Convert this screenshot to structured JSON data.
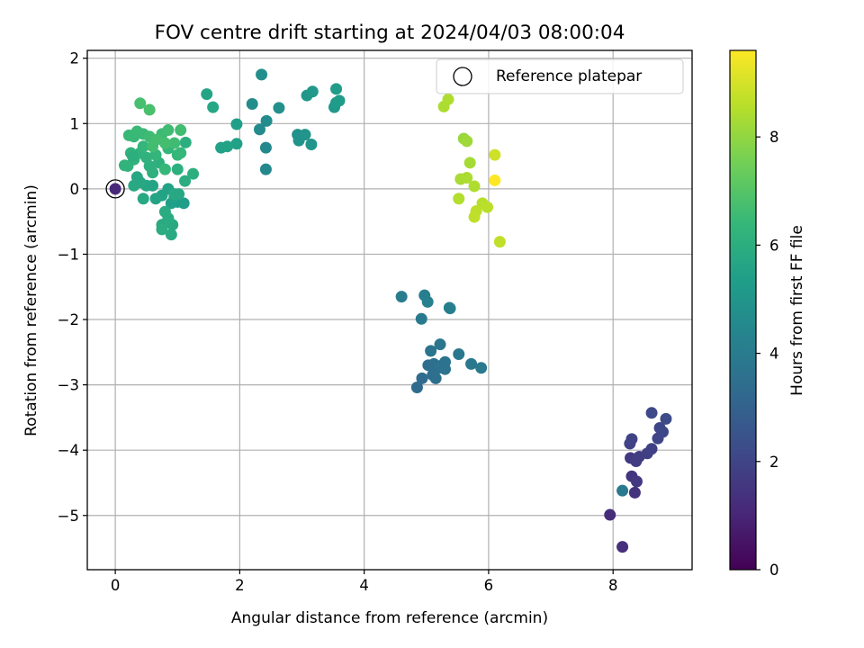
{
  "chart_data": {
    "type": "scatter",
    "title": "FOV centre drift starting at 2024/04/03 08:00:04",
    "xlabel": "Angular distance from reference (arcmin)",
    "ylabel": "Rotation from reference (arcmin)",
    "xlim": [
      -0.45,
      9.27
    ],
    "ylim": [
      -5.83,
      2.12
    ],
    "xticks": [
      0,
      2,
      4,
      6,
      8
    ],
    "yticks": [
      -5,
      -4,
      -3,
      -2,
      -1,
      0,
      1,
      2
    ],
    "grid": true,
    "legend": {
      "position": "top-right",
      "entries": [
        "Reference platepar"
      ]
    },
    "reference_point": {
      "x": 0,
      "y": 0
    },
    "colorbar": {
      "label": "Hours from first FF file",
      "min": 0,
      "max": 9.6,
      "ticks": [
        0,
        2,
        4,
        6,
        8
      ],
      "colormap": "viridis",
      "colormap_stops": [
        "#440154",
        "#482878",
        "#3e4989",
        "#31688e",
        "#26828e",
        "#1f9e89",
        "#35b779",
        "#6ece58",
        "#b5de2b",
        "#fde725"
      ]
    },
    "series": [
      {
        "points": [
          {
            "x": 0.0,
            "y": 0.0,
            "c": 1.1
          },
          {
            "x": 7.95,
            "y": -4.99,
            "c": 1.2
          },
          {
            "x": 8.15,
            "y": -5.48,
            "c": 1.3
          },
          {
            "x": 8.35,
            "y": -4.65,
            "c": 1.4
          },
          {
            "x": 8.3,
            "y": -4.4,
            "c": 1.5
          },
          {
            "x": 8.38,
            "y": -4.48,
            "c": 1.6
          },
          {
            "x": 8.28,
            "y": -4.12,
            "c": 1.6
          },
          {
            "x": 8.37,
            "y": -4.17,
            "c": 1.7
          },
          {
            "x": 8.42,
            "y": -4.1,
            "c": 1.75
          },
          {
            "x": 8.55,
            "y": -4.05,
            "c": 1.8
          },
          {
            "x": 8.62,
            "y": -3.98,
            "c": 1.85
          },
          {
            "x": 8.27,
            "y": -3.9,
            "c": 1.9
          },
          {
            "x": 8.3,
            "y": -3.83,
            "c": 1.95
          },
          {
            "x": 8.72,
            "y": -3.82,
            "c": 2.0
          },
          {
            "x": 8.75,
            "y": -3.66,
            "c": 2.05
          },
          {
            "x": 8.8,
            "y": -3.72,
            "c": 2.1
          },
          {
            "x": 8.62,
            "y": -3.43,
            "c": 2.15
          },
          {
            "x": 8.85,
            "y": -3.52,
            "c": 2.2
          },
          {
            "x": 8.15,
            "y": -4.62,
            "c": 3.9
          },
          {
            "x": 4.85,
            "y": -3.04,
            "c": 3.3
          },
          {
            "x": 4.93,
            "y": -2.9,
            "c": 3.35
          },
          {
            "x": 5.03,
            "y": -2.7,
            "c": 3.4
          },
          {
            "x": 5.1,
            "y": -2.85,
            "c": 3.45
          },
          {
            "x": 5.12,
            "y": -2.68,
            "c": 3.5
          },
          {
            "x": 5.15,
            "y": -2.9,
            "c": 3.5
          },
          {
            "x": 5.2,
            "y": -2.74,
            "c": 3.55
          },
          {
            "x": 5.25,
            "y": -2.7,
            "c": 3.6
          },
          {
            "x": 5.3,
            "y": -2.76,
            "c": 3.6
          },
          {
            "x": 5.3,
            "y": -2.65,
            "c": 3.65
          },
          {
            "x": 5.07,
            "y": -2.48,
            "c": 3.7
          },
          {
            "x": 5.22,
            "y": -2.38,
            "c": 3.75
          },
          {
            "x": 5.52,
            "y": -2.53,
            "c": 3.8
          },
          {
            "x": 5.72,
            "y": -2.68,
            "c": 3.85
          },
          {
            "x": 5.88,
            "y": -2.74,
            "c": 3.9
          },
          {
            "x": 4.92,
            "y": -1.99,
            "c": 3.95
          },
          {
            "x": 4.6,
            "y": -1.65,
            "c": 4.0
          },
          {
            "x": 4.97,
            "y": -1.63,
            "c": 4.05
          },
          {
            "x": 5.37,
            "y": -1.82,
            "c": 4.1
          },
          {
            "x": 5.38,
            "y": -1.83,
            "c": 4.15
          },
          {
            "x": 5.02,
            "y": -1.73,
            "c": 4.2
          },
          {
            "x": 2.42,
            "y": 0.3,
            "c": 4.5
          },
          {
            "x": 2.42,
            "y": 0.63,
            "c": 4.55
          },
          {
            "x": 2.32,
            "y": 0.91,
            "c": 4.6
          },
          {
            "x": 2.43,
            "y": 1.04,
            "c": 4.65
          },
          {
            "x": 2.2,
            "y": 1.3,
            "c": 4.7
          },
          {
            "x": 2.35,
            "y": 1.75,
            "c": 4.75
          },
          {
            "x": 2.63,
            "y": 1.24,
            "c": 4.8
          },
          {
            "x": 2.93,
            "y": 0.83,
            "c": 4.85
          },
          {
            "x": 2.95,
            "y": 0.74,
            "c": 4.9
          },
          {
            "x": 3.05,
            "y": 0.83,
            "c": 4.95
          },
          {
            "x": 3.15,
            "y": 0.68,
            "c": 5.0
          },
          {
            "x": 3.08,
            "y": 1.43,
            "c": 5.05
          },
          {
            "x": 3.17,
            "y": 1.49,
            "c": 5.1
          },
          {
            "x": 3.52,
            "y": 1.25,
            "c": 5.15
          },
          {
            "x": 3.55,
            "y": 1.32,
            "c": 5.2
          },
          {
            "x": 3.55,
            "y": 1.53,
            "c": 5.25
          },
          {
            "x": 3.6,
            "y": 1.35,
            "c": 5.3
          },
          {
            "x": 1.95,
            "y": 0.99,
            "c": 5.4
          },
          {
            "x": 1.95,
            "y": 0.69,
            "c": 5.45
          },
          {
            "x": 1.7,
            "y": 0.63,
            "c": 5.5
          },
          {
            "x": 1.8,
            "y": 0.65,
            "c": 5.55
          },
          {
            "x": 1.0,
            "y": -0.2,
            "c": 5.3
          },
          {
            "x": 1.1,
            "y": -0.22,
            "c": 5.35
          },
          {
            "x": 0.9,
            "y": -0.22,
            "c": 5.4
          },
          {
            "x": 0.95,
            "y": -0.13,
            "c": 5.45
          },
          {
            "x": 0.85,
            "y": 0.0,
            "c": 5.5
          },
          {
            "x": 0.75,
            "y": -0.1,
            "c": 5.55
          },
          {
            "x": 0.65,
            "y": -0.15,
            "c": 5.6
          },
          {
            "x": 0.6,
            "y": 0.05,
            "c": 5.6
          },
          {
            "x": 0.5,
            "y": 0.05,
            "c": 5.65
          },
          {
            "x": 0.4,
            "y": 0.1,
            "c": 5.7
          },
          {
            "x": 0.35,
            "y": 0.18,
            "c": 5.7
          },
          {
            "x": 0.45,
            "y": -0.15,
            "c": 5.75
          },
          {
            "x": 0.3,
            "y": 0.05,
            "c": 5.75
          },
          {
            "x": 0.95,
            "y": -0.08,
            "c": 5.8
          },
          {
            "x": 0.92,
            "y": -0.55,
            "c": 5.8
          },
          {
            "x": 0.75,
            "y": -0.55,
            "c": 5.85
          },
          {
            "x": 0.9,
            "y": -0.7,
            "c": 5.85
          },
          {
            "x": 0.8,
            "y": -0.35,
            "c": 5.9
          },
          {
            "x": 0.85,
            "y": -0.45,
            "c": 5.9
          },
          {
            "x": 0.75,
            "y": -0.62,
            "c": 5.95
          },
          {
            "x": 1.12,
            "y": 0.12,
            "c": 5.95
          },
          {
            "x": 1.25,
            "y": 0.23,
            "c": 6.0
          },
          {
            "x": 1.13,
            "y": 0.71,
            "c": 6.0
          },
          {
            "x": 1.0,
            "y": 0.3,
            "c": 6.05
          },
          {
            "x": 0.7,
            "y": 0.4,
            "c": 6.05
          },
          {
            "x": 0.6,
            "y": 0.25,
            "c": 6.1
          },
          {
            "x": 0.55,
            "y": 0.35,
            "c": 6.1
          },
          {
            "x": 0.5,
            "y": 0.48,
            "c": 6.15
          },
          {
            "x": 0.4,
            "y": 0.55,
            "c": 6.15
          },
          {
            "x": 0.3,
            "y": 0.45,
            "c": 6.2
          },
          {
            "x": 0.2,
            "y": 0.35,
            "c": 6.2
          },
          {
            "x": 0.15,
            "y": 0.36,
            "c": 6.25
          },
          {
            "x": 0.25,
            "y": 0.55,
            "c": 6.25
          },
          {
            "x": 0.45,
            "y": 0.65,
            "c": 6.3
          },
          {
            "x": 0.65,
            "y": 0.52,
            "c": 6.3
          },
          {
            "x": 0.85,
            "y": 0.62,
            "c": 6.35
          },
          {
            "x": 1.0,
            "y": 0.52,
            "c": 6.35
          },
          {
            "x": 1.05,
            "y": 0.55,
            "c": 6.4
          },
          {
            "x": 0.8,
            "y": 0.3,
            "c": 6.4
          },
          {
            "x": 0.3,
            "y": 0.8,
            "c": 6.45
          },
          {
            "x": 0.22,
            "y": 0.82,
            "c": 6.45
          },
          {
            "x": 0.35,
            "y": 0.88,
            "c": 6.5
          },
          {
            "x": 0.45,
            "y": 0.84,
            "c": 6.5
          },
          {
            "x": 0.55,
            "y": 0.8,
            "c": 6.55
          },
          {
            "x": 0.75,
            "y": 0.84,
            "c": 6.55
          },
          {
            "x": 0.85,
            "y": 0.9,
            "c": 6.6
          },
          {
            "x": 0.95,
            "y": 0.7,
            "c": 6.6
          },
          {
            "x": 1.05,
            "y": 0.9,
            "c": 6.65
          },
          {
            "x": 0.6,
            "y": 0.65,
            "c": 6.65
          },
          {
            "x": 0.8,
            "y": 0.7,
            "c": 6.7
          },
          {
            "x": 0.65,
            "y": 0.75,
            "c": 6.7
          },
          {
            "x": 0.4,
            "y": 1.31,
            "c": 6.75
          },
          {
            "x": 0.55,
            "y": 1.21,
            "c": 6.8
          },
          {
            "x": 1.47,
            "y": 1.45,
            "c": 5.6
          },
          {
            "x": 1.57,
            "y": 1.25,
            "c": 5.7
          },
          {
            "x": 1.02,
            "y": -0.08,
            "c": 5.7
          },
          {
            "x": 0.28,
            "y": 0.5,
            "c": 6.0
          },
          {
            "x": 5.28,
            "y": 1.26,
            "c": 8.4
          },
          {
            "x": 5.35,
            "y": 1.37,
            "c": 8.45
          },
          {
            "x": 5.6,
            "y": 0.77,
            "c": 8.1
          },
          {
            "x": 5.65,
            "y": 0.73,
            "c": 8.2
          },
          {
            "x": 5.7,
            "y": 0.4,
            "c": 8.3
          },
          {
            "x": 5.55,
            "y": 0.15,
            "c": 8.35
          },
          {
            "x": 5.65,
            "y": 0.17,
            "c": 8.4
          },
          {
            "x": 5.77,
            "y": 0.04,
            "c": 8.45
          },
          {
            "x": 5.52,
            "y": -0.15,
            "c": 8.5
          },
          {
            "x": 5.9,
            "y": -0.22,
            "c": 8.55
          },
          {
            "x": 5.98,
            "y": -0.28,
            "c": 8.6
          },
          {
            "x": 5.8,
            "y": -0.34,
            "c": 8.65
          },
          {
            "x": 5.77,
            "y": -0.43,
            "c": 8.7
          },
          {
            "x": 6.1,
            "y": 0.52,
            "c": 8.9
          },
          {
            "x": 6.1,
            "y": 0.13,
            "c": 9.6
          },
          {
            "x": 6.18,
            "y": -0.81,
            "c": 8.7
          }
        ]
      }
    ]
  }
}
